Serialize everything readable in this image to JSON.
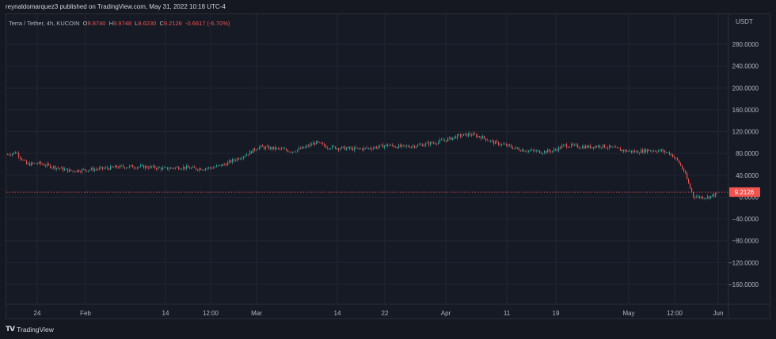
{
  "header": {
    "publisher_text": "reynaldomarquez3 published on TradingView.com, May 31, 2022 10:18 UTC-4"
  },
  "legend": {
    "symbol": "Terra / Tether, 4h, KUCOIN",
    "o_label": "O",
    "o_value": "9.8740",
    "h_label": "H",
    "h_value": "9.9748",
    "l_label": "L",
    "l_value": "8.6230",
    "c_label": "C",
    "c_value": "9.2126",
    "change": "-0.6617 (-6.70%)"
  },
  "footer": {
    "brand": "TradingView",
    "logo_icon": "tradingview-logo-icon"
  },
  "colors": {
    "background": "#161a25",
    "grid": "#222633",
    "up": "#26a69a",
    "down": "#ef5350",
    "price_line": "#ef5350",
    "axis_text": "#b2b5be"
  },
  "chart_data": {
    "type": "candlestick",
    "title": "Terra / Tether, 4h, KUCOIN",
    "currency_label": "USDT",
    "x_tick_labels": [
      "24",
      "Feb",
      "14",
      "12:00",
      "Mar",
      "14",
      "22",
      "Apr",
      "11",
      "19",
      "May",
      "12:00",
      "Jun"
    ],
    "y_ticks": [
      280,
      240,
      200,
      160,
      120,
      80,
      40,
      0,
      -40,
      -80,
      -120,
      -160
    ],
    "y_tick_labels": [
      "280.0000",
      "240.0000",
      "200.0000",
      "160.0000",
      "120.0000",
      "80.0000",
      "40.0000",
      "0.0000",
      "−40.0000",
      "−80.0000",
      "−120.0000",
      "−160.0000"
    ],
    "ylim": [
      -190,
      300
    ],
    "grid": true,
    "last_price": 9.2126,
    "last_price_label": "9.2126",
    "price_path": [
      {
        "x": 0,
        "y": 78
      },
      {
        "x": 12,
        "y": 82
      },
      {
        "x": 25,
        "y": 60
      },
      {
        "x": 40,
        "y": 62
      },
      {
        "x": 60,
        "y": 55
      },
      {
        "x": 80,
        "y": 48
      },
      {
        "x": 100,
        "y": 50
      },
      {
        "x": 120,
        "y": 52
      },
      {
        "x": 140,
        "y": 55
      },
      {
        "x": 160,
        "y": 56
      },
      {
        "x": 180,
        "y": 55
      },
      {
        "x": 200,
        "y": 52
      },
      {
        "x": 220,
        "y": 55
      },
      {
        "x": 240,
        "y": 52
      },
      {
        "x": 260,
        "y": 54
      },
      {
        "x": 275,
        "y": 60
      },
      {
        "x": 290,
        "y": 70
      },
      {
        "x": 305,
        "y": 80
      },
      {
        "x": 318,
        "y": 92
      },
      {
        "x": 330,
        "y": 90
      },
      {
        "x": 345,
        "y": 88
      },
      {
        "x": 360,
        "y": 84
      },
      {
        "x": 375,
        "y": 90
      },
      {
        "x": 390,
        "y": 100
      },
      {
        "x": 405,
        "y": 92
      },
      {
        "x": 420,
        "y": 90
      },
      {
        "x": 440,
        "y": 88
      },
      {
        "x": 460,
        "y": 90
      },
      {
        "x": 480,
        "y": 95
      },
      {
        "x": 500,
        "y": 92
      },
      {
        "x": 520,
        "y": 95
      },
      {
        "x": 540,
        "y": 100
      },
      {
        "x": 555,
        "y": 105
      },
      {
        "x": 570,
        "y": 112
      },
      {
        "x": 585,
        "y": 115
      },
      {
        "x": 600,
        "y": 110
      },
      {
        "x": 615,
        "y": 100
      },
      {
        "x": 630,
        "y": 95
      },
      {
        "x": 645,
        "y": 88
      },
      {
        "x": 660,
        "y": 85
      },
      {
        "x": 675,
        "y": 83
      },
      {
        "x": 690,
        "y": 85
      },
      {
        "x": 705,
        "y": 95
      },
      {
        "x": 720,
        "y": 93
      },
      {
        "x": 735,
        "y": 92
      },
      {
        "x": 750,
        "y": 94
      },
      {
        "x": 765,
        "y": 90
      },
      {
        "x": 780,
        "y": 85
      },
      {
        "x": 795,
        "y": 83
      },
      {
        "x": 810,
        "y": 86
      },
      {
        "x": 825,
        "y": 85
      },
      {
        "x": 838,
        "y": 80
      },
      {
        "x": 848,
        "y": 65
      },
      {
        "x": 856,
        "y": 45
      },
      {
        "x": 862,
        "y": 20
      },
      {
        "x": 867,
        "y": 2
      },
      {
        "x": 875,
        "y": 0
      },
      {
        "x": 885,
        "y": 0
      },
      {
        "x": 895,
        "y": 5
      },
      {
        "x": 900,
        "y": 9
      }
    ]
  }
}
